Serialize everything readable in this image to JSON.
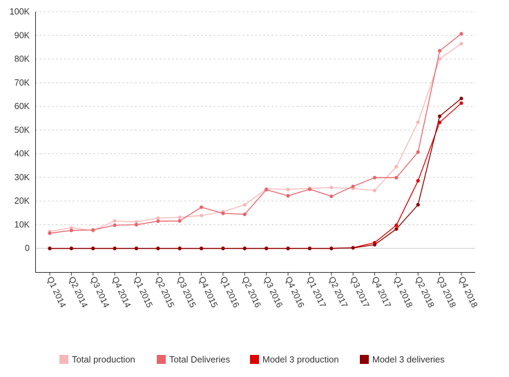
{
  "chart_data": {
    "type": "line",
    "title": "",
    "xlabel": "",
    "ylabel": "",
    "categories": [
      "Q1 2014",
      "Q2 2014",
      "Q3 2014",
      "Q4 2014",
      "Q1 2015",
      "Q2 2015",
      "Q3 2015",
      "Q4 2015",
      "Q1 2016",
      "Q2 2016",
      "Q3 2016",
      "Q4 2016",
      "Q1 2017",
      "Q2 2017",
      "Q3 2017",
      "Q4 2017",
      "Q1 2018",
      "Q2 2018",
      "Q3 2018",
      "Q4 2018"
    ],
    "ylim": [
      -10000,
      100000
    ],
    "yticks": [
      {
        "value": 0,
        "label": "0"
      },
      {
        "value": 10000,
        "label": "10K"
      },
      {
        "value": 20000,
        "label": "20K"
      },
      {
        "value": 30000,
        "label": "30K"
      },
      {
        "value": 40000,
        "label": "40K"
      },
      {
        "value": 50000,
        "label": "50K"
      },
      {
        "value": 60000,
        "label": "60K"
      },
      {
        "value": 70000,
        "label": "70K"
      },
      {
        "value": 80000,
        "label": "80K"
      },
      {
        "value": 90000,
        "label": "90K"
      },
      {
        "value": 100000,
        "label": "100K"
      }
    ],
    "grid": true,
    "legend_position": "bottom",
    "series": [
      {
        "name": "Total production",
        "color": "#f7b7b9",
        "values": [
          7200,
          8700,
          7500,
          11600,
          11200,
          12800,
          13100,
          13900,
          15500,
          18400,
          25200,
          24900,
          25400,
          25700,
          25300,
          24500,
          34500,
          53300,
          80100,
          86500
        ]
      },
      {
        "name": "Total Deliveries",
        "color": "#e8646a",
        "values": [
          6400,
          7600,
          7800,
          9800,
          10000,
          11500,
          11600,
          17400,
          14800,
          14400,
          24800,
          22200,
          25000,
          22000,
          26200,
          29900,
          29900,
          40700,
          83500,
          90700
        ]
      },
      {
        "name": "Model 3 production",
        "color": "#e00000",
        "values": [
          0,
          0,
          0,
          0,
          0,
          0,
          0,
          0,
          0,
          0,
          0,
          0,
          0,
          0,
          260,
          2425,
          9766,
          28578,
          53239,
          61394
        ]
      },
      {
        "name": "Model 3 deliveries",
        "color": "#8b0000",
        "values": [
          0,
          0,
          0,
          0,
          0,
          0,
          0,
          0,
          0,
          0,
          0,
          0,
          0,
          0,
          220,
          1550,
          8180,
          18449,
          55840,
          63359
        ]
      }
    ]
  }
}
